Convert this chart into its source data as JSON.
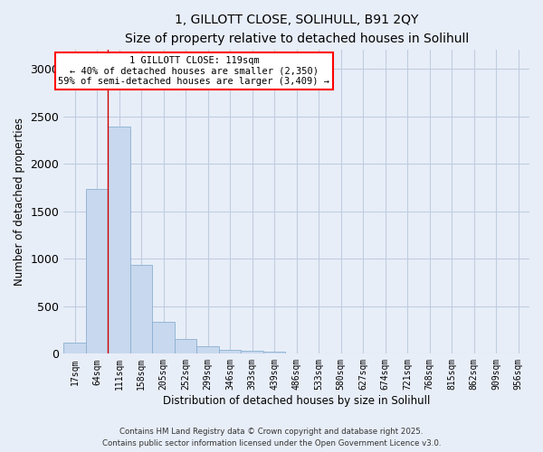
{
  "title": "1, GILLOTT CLOSE, SOLIHULL, B91 2QY",
  "subtitle": "Size of property relative to detached houses in Solihull",
  "xlabel": "Distribution of detached houses by size in Solihull",
  "ylabel": "Number of detached properties",
  "bar_color": "#c8d8ee",
  "bar_edge_color": "#8ab0d0",
  "background_color": "#e8eef8",
  "grid_color": "#c0cce0",
  "bin_labels": [
    "17sqm",
    "64sqm",
    "111sqm",
    "158sqm",
    "205sqm",
    "252sqm",
    "299sqm",
    "346sqm",
    "393sqm",
    "439sqm",
    "486sqm",
    "533sqm",
    "580sqm",
    "627sqm",
    "674sqm",
    "721sqm",
    "768sqm",
    "815sqm",
    "862sqm",
    "909sqm",
    "956sqm"
  ],
  "bar_values": [
    113,
    1730,
    2390,
    940,
    340,
    155,
    80,
    40,
    30,
    25,
    0,
    0,
    0,
    0,
    0,
    0,
    0,
    0,
    0,
    0,
    0
  ],
  "ylim": [
    0,
    3200
  ],
  "yticks": [
    0,
    500,
    1000,
    1500,
    2000,
    2500,
    3000
  ],
  "property_line_label": "1 GILLOTT CLOSE: 119sqm",
  "annotation_line1": "← 40% of detached houses are smaller (2,350)",
  "annotation_line2": "59% of semi-detached houses are larger (3,409) →",
  "red_line_color": "#cc0000",
  "footer1": "Contains HM Land Registry data © Crown copyright and database right 2025.",
  "footer2": "Contains public sector information licensed under the Open Government Licence v3.0."
}
